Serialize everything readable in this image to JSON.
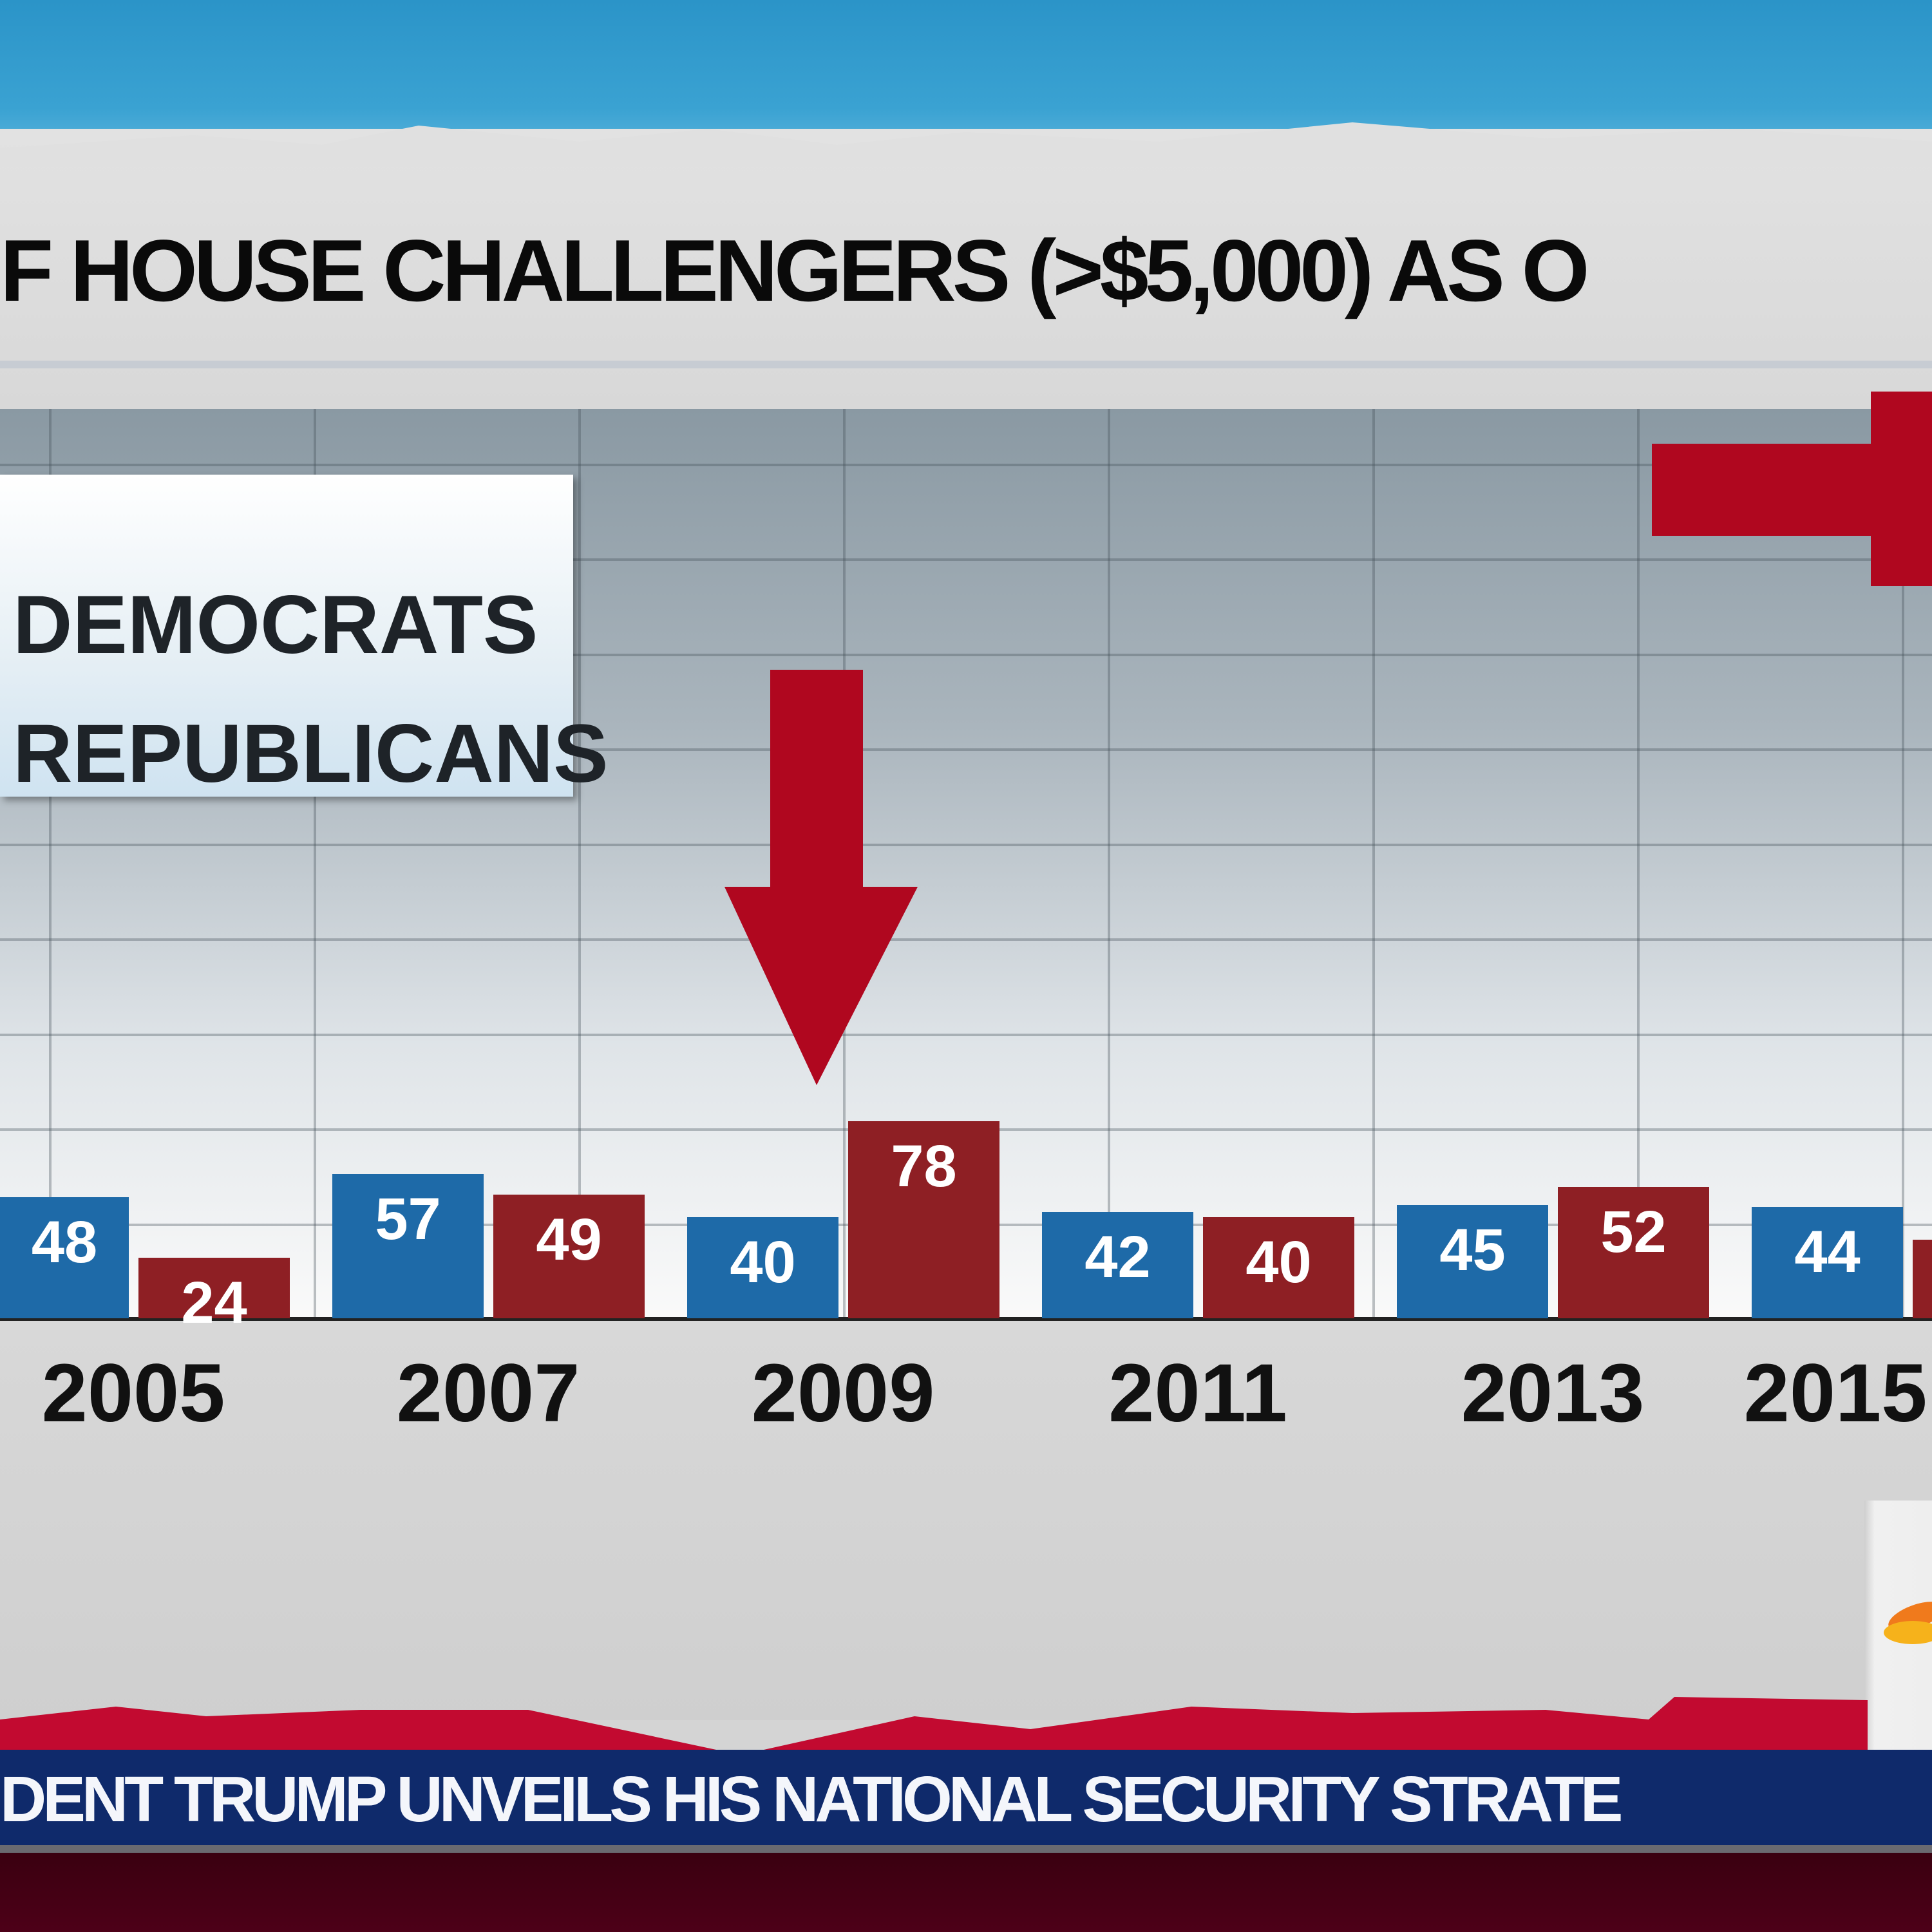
{
  "title": "F HOUSE CHALLENGERS (>$5,000) AS O",
  "legend": {
    "democrats": "DEMOCRATS",
    "republicans": "REPUBLICANS"
  },
  "ticker": "DENT TRUMP UNVEILS HIS NATIONAL SECURITY STRATE",
  "colors": {
    "democrats": "#1e6aa8",
    "republicans": "#8e1f24",
    "arrow": "#b0071f",
    "ticker_bg": "#0f2a6b"
  },
  "chart_data": {
    "type": "bar",
    "title": "F HOUSE CHALLENGERS (>$5,000) AS O",
    "categories": [
      "2005",
      "2007",
      "2009",
      "2011",
      "2013",
      "2015"
    ],
    "series": [
      {
        "name": "DEMOCRATS",
        "values": [
          48,
          57,
          40,
          42,
          45,
          44
        ],
        "labels": [
          "48",
          "57",
          "40",
          "42",
          "45",
          "44"
        ]
      },
      {
        "name": "REPUBLICANS",
        "values": [
          24,
          49,
          78,
          40,
          52,
          31
        ],
        "labels": [
          "24",
          "49",
          "78",
          "40",
          "52",
          ""
        ]
      }
    ],
    "ylim": [
      0,
      360
    ],
    "grid": true,
    "legend_position": "top-left",
    "annotations": [
      "down-arrow over 2009",
      "right-arrow at top-right"
    ]
  }
}
